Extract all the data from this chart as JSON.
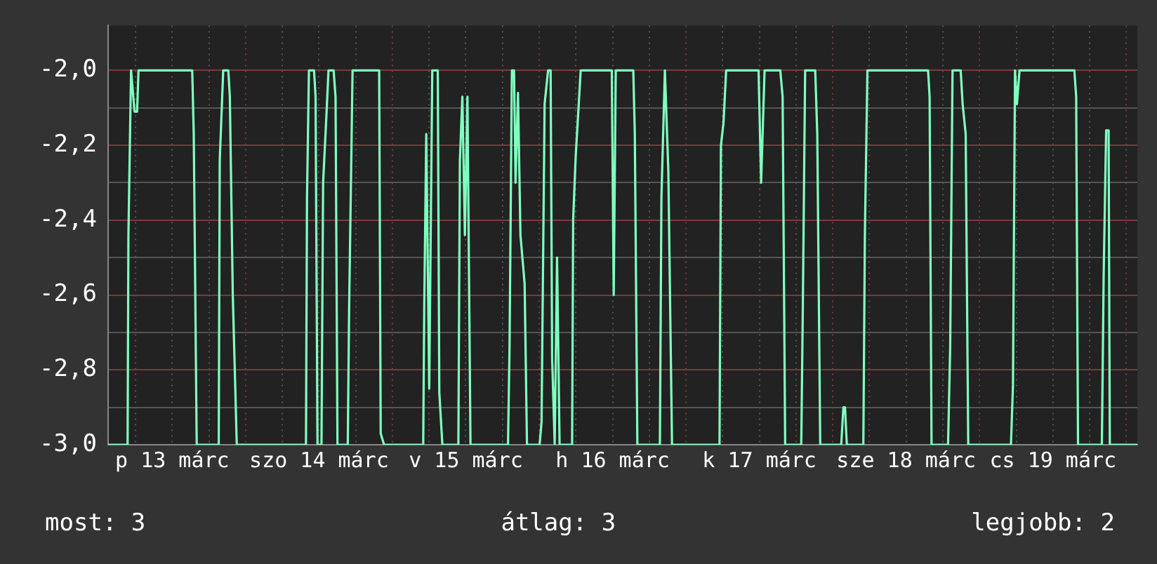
{
  "chart_data": {
    "type": "line",
    "color": "#80ffc0",
    "grid": true,
    "legend": false,
    "marker": "none",
    "line_style": "solid",
    "xlim": [
      "--03-13T01:30",
      "--03-20T01:48"
    ],
    "ylim": [
      -3,
      -1.88
    ],
    "xticks": [
      {
        "value": "--03-13T06:00",
        "label": null
      },
      {
        "value": "--03-13T12:00",
        "label": "p 13 márc"
      },
      {
        "value": "--03-13T18:00",
        "label": null
      },
      {
        "value": "--03-14T00:00",
        "label": null
      },
      {
        "value": "--03-14T06:00",
        "label": null
      },
      {
        "value": "--03-14T12:00",
        "label": "szo 14 márc"
      },
      {
        "value": "--03-14T18:00",
        "label": null
      },
      {
        "value": "--03-15T00:00",
        "label": null
      },
      {
        "value": "--03-15T06:00",
        "label": null
      },
      {
        "value": "--03-15T12:00",
        "label": "v 15 márc"
      },
      {
        "value": "--03-15T18:00",
        "label": null
      },
      {
        "value": "--03-16T00:00",
        "label": null
      },
      {
        "value": "--03-16T06:00",
        "label": null
      },
      {
        "value": "--03-16T12:00",
        "label": "h 16 márc"
      },
      {
        "value": "--03-16T18:00",
        "label": null
      },
      {
        "value": "--03-17T00:00",
        "label": null
      },
      {
        "value": "--03-17T06:00",
        "label": null
      },
      {
        "value": "--03-17T12:00",
        "label": "k 17 márc"
      },
      {
        "value": "--03-17T18:00",
        "label": null
      },
      {
        "value": "--03-18T00:00",
        "label": null
      },
      {
        "value": "--03-18T06:00",
        "label": null
      },
      {
        "value": "--03-18T12:00",
        "label": "sze 18 márc"
      },
      {
        "value": "--03-18T18:00",
        "label": null
      },
      {
        "value": "--03-19T00:00",
        "label": null
      },
      {
        "value": "--03-19T06:00",
        "label": null
      },
      {
        "value": "--03-19T12:00",
        "label": "cs 19 márc"
      },
      {
        "value": "--03-19T18:00",
        "label": null
      },
      {
        "value": "--03-20T00:00",
        "label": null
      }
    ],
    "yticks": [
      {
        "value": -3,
        "label": "-3,0"
      },
      {
        "value": -2.9,
        "label": null
      },
      {
        "value": -2.8,
        "label": "-2,8"
      },
      {
        "value": -2.7,
        "label": null
      },
      {
        "value": -2.6,
        "label": "-2,6"
      },
      {
        "value": -2.5,
        "label": null
      },
      {
        "value": -2.4,
        "label": "-2,4"
      },
      {
        "value": -2.3,
        "label": null
      },
      {
        "value": -2.2,
        "label": "-2,2"
      },
      {
        "value": -2.1,
        "label": null
      },
      {
        "value": -2,
        "label": "-2,0"
      }
    ],
    "annotations": [
      "most: 3",
      "átlag: 3",
      "legjobb: 2"
    ],
    "x": [
      "--03-13T01:30",
      "--03-13T04:42",
      "--03-13T04:50",
      "--03-13T05:16",
      "--03-13T05:50",
      "--03-13T06:15",
      "--03-13T06:29",
      "--03-13T15:16",
      "--03-13T15:31",
      "--03-13T16:00",
      "--03-13T19:36",
      "--03-13T19:46",
      "--03-13T20:20",
      "--03-13T21:10",
      "--03-13T21:25",
      "--03-13T21:54",
      "--03-13T22:33",
      "--03-14T09:52",
      "--03-14T10:02",
      "--03-14T10:21",
      "--03-14T11:11",
      "--03-14T11:26",
      "--03-14T11:45",
      "--03-14T12:24",
      "--03-14T12:40",
      "--03-14T13:09",
      "--03-14T13:33",
      "--03-14T14:23",
      "--03-14T14:42",
      "--03-14T15:01",
      "--03-14T16:42",
      "--03-14T16:55",
      "--03-14T17:29",
      "--03-14T21:50",
      "--03-14T22:05",
      "--03-14T22:38",
      "--03-15T05:02",
      "--03-15T05:12",
      "--03-15T05:32",
      "--03-15T06:01",
      "--03-15T06:31",
      "--03-15T07:25",
      "--03-15T07:40",
      "--03-15T08:10",
      "--03-15T10:47",
      "--03-15T11:02",
      "--03-15T11:26",
      "--03-15T11:51",
      "--03-15T12:16",
      "--03-15T12:46",
      "--03-15T18:54",
      "--03-15T19:09",
      "--03-15T19:32",
      "--03-15T19:53",
      "--03-15T20:08",
      "--03-15T20:32",
      "--03-15T20:56",
      "--03-15T21:37",
      "--03-15T22:00",
      "--03-16T00:04",
      "--03-16T00:23",
      "--03-16T00:53",
      "--03-16T01:27",
      "--03-16T01:52",
      "--03-16T02:07",
      "--03-16T02:32",
      "--03-16T02:55",
      "--03-16T03:20",
      "--03-16T05:23",
      "--03-16T05:33",
      "--03-16T05:58",
      "--03-16T06:47",
      "--03-16T11:52",
      "--03-16T12:11",
      "--03-16T12:31",
      "--03-16T15:23",
      "--03-16T15:38",
      "--03-16T16:03",
      "--03-16T19:44",
      "--03-16T19:59",
      "--03-16T20:33",
      "--03-16T21:07",
      "--03-16T21:43",
      "--03-17T05:29",
      "--03-17T05:43",
      "--03-17T06:08",
      "--03-17T06:34",
      "--03-17T11:52",
      "--03-17T12:17",
      "--03-17T12:51",
      "--03-17T15:25",
      "--03-17T15:48",
      "--03-17T16:13",
      "--03-17T18:51",
      "--03-17T19:06",
      "--03-17T19:29",
      "--03-17T21:08",
      "--03-17T21:28",
      "--03-17T21:57",
      "--03-18T01:23",
      "--03-18T01:44",
      "--03-18T02:00",
      "--03-18T02:18",
      "--03-18T05:00",
      "--03-18T05:15",
      "--03-18T05:40",
      "--03-18T15:35",
      "--03-18T15:50",
      "--03-18T16:09",
      "--03-18T18:51",
      "--03-18T19:12",
      "--03-18T19:35",
      "--03-18T20:55",
      "--03-18T21:14",
      "--03-18T21:44",
      "--03-18T22:09",
      "--03-19T05:08",
      "--03-19T05:28",
      "--03-19T05:48",
      "--03-19T06:07",
      "--03-19T06:32",
      "--03-19T15:30",
      "--03-19T15:48",
      "--03-19T16:06",
      "--03-19T20:00",
      "--03-19T20:18",
      "--03-19T20:42",
      "--03-19T21:06",
      "--03-19T21:18",
      "--03-20T01:48"
    ],
    "values": [
      -3,
      -3,
      -2.44,
      -2.0,
      -2.11,
      -2.11,
      -2.0,
      -2.0,
      -2.17,
      -3,
      -3,
      -2.24,
      -2.0,
      -2.0,
      -2.07,
      -2.6,
      -3,
      -3,
      -2.34,
      -2.0,
      -2.0,
      -2.07,
      -3,
      -3,
      -2.3,
      -2.14,
      -2.0,
      -2.0,
      -2.07,
      -3,
      -3,
      -2.64,
      -2.0,
      -2.0,
      -2.97,
      -3,
      -3,
      -2.64,
      -2.17,
      -2.85,
      -2.0,
      -2.0,
      -2.86,
      -3,
      -3,
      -2.24,
      -2.07,
      -2.44,
      -2.07,
      -3,
      -3,
      -2.74,
      -2.0,
      -2.0,
      -2.3,
      -2.06,
      -2.44,
      -2.57,
      -3,
      -3,
      -2.94,
      -2.09,
      -2.0,
      -2.0,
      -2.77,
      -3,
      -2.5,
      -3,
      -3,
      -2.4,
      -2.23,
      -2.0,
      -2.0,
      -2.6,
      -2.0,
      -2.0,
      -2.17,
      -3,
      -3,
      -2.34,
      -2.0,
      -2.27,
      -3,
      -3,
      -2.2,
      -2.14,
      -2.0,
      -2.0,
      -2.3,
      -2.0,
      -2.0,
      -2.07,
      -3,
      -3,
      -2.64,
      -2.0,
      -2.0,
      -2.17,
      -3,
      -3,
      -2.9,
      -2.9,
      -3,
      -3,
      -2.44,
      -2.0,
      -2.0,
      -2.07,
      -3,
      -3,
      -2.74,
      -2.0,
      -2.0,
      -2.09,
      -2.17,
      -3,
      -3,
      -2.84,
      -2.0,
      -2.09,
      -2.0,
      -2.0,
      -2.07,
      -3,
      -3,
      -2.54,
      -2.16,
      -2.16,
      -3,
      -3
    ]
  }
}
